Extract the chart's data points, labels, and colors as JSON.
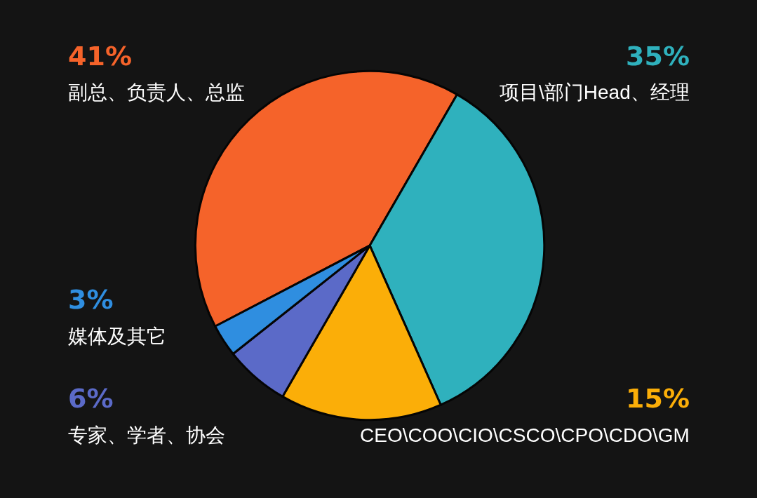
{
  "chart_data": {
    "type": "pie",
    "categories": [
      "副总、负责人、总监",
      "项目\\部门Head、经理",
      "CEO\\COO\\CIO\\CSCO\\CPO\\CDO\\GM",
      "专家、学者、协会",
      "媒体及其它"
    ],
    "values": [
      41,
      35,
      15,
      6,
      3
    ],
    "value_labels": [
      "41%",
      "35%",
      "15%",
      "6%",
      "3%"
    ],
    "colors": [
      "#f5632a",
      "#2fb1bd",
      "#fbae08",
      "#5b6ac8",
      "#2f8ee0"
    ]
  }
}
